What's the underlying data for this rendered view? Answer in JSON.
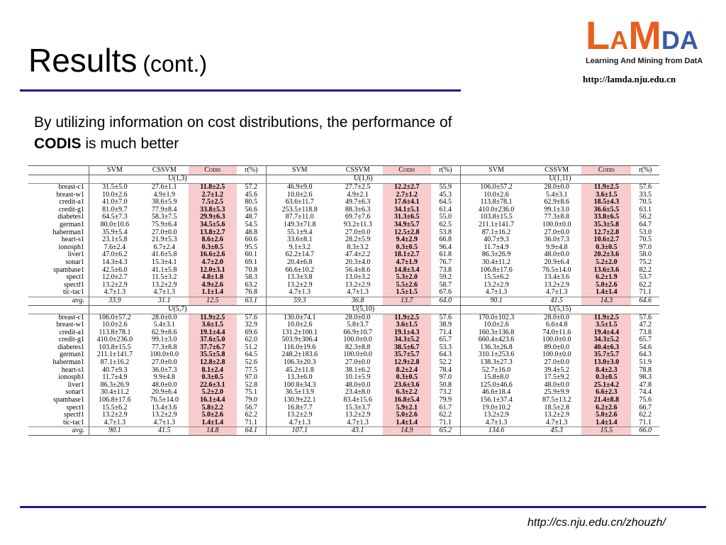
{
  "slide": {
    "title_main": "Results",
    "title_sub": "(cont.)",
    "intro_lead": "By utilizing information on cost distributions, the performance of",
    "intro_bold": "CODIS",
    "intro_tail": " is much better",
    "footer_url": "http://cs.nju.edu.cn/zhouzh/"
  },
  "logo": {
    "letters": [
      "L",
      "A",
      "M",
      "D",
      "A"
    ],
    "tagline": "Learning And Mining from DatA",
    "url": "http://lamda.nju.edu.cn"
  },
  "colors": {
    "rule": "#1a1a8c",
    "logo_orange": "#e8601c",
    "logo_blue": "#3a5aa8",
    "codis_highlight": "#f8cccc"
  },
  "table": {
    "headers": [
      "SVM",
      "CSSVM",
      "Codis",
      "r(%)",
      "SVM",
      "CSSVM",
      "Codis",
      "r(%)",
      "SVM",
      "CSSVM",
      "Codis",
      "r(%)"
    ],
    "sections": [
      {
        "labels": [
          "U(1,3)",
          "U(1,6)",
          "U(1,11)"
        ],
        "rows": [
          [
            "breast-c1",
            "31.5±5.0",
            "27.6±1.1",
            "11.8±2.5",
            "57.2",
            "46.9±9.0",
            "27.7±2.5",
            "12.2±2.7",
            "55.9",
            "106.0±57.2",
            "28.0±0.0",
            "11.9±2.5",
            "57.6"
          ],
          [
            "breast-w1",
            "10.0±2.6",
            "4.9±1.9",
            "2.7±1.2",
            "45.6",
            "10.0±2.6",
            "4.9±2.1",
            "2.7±1.2",
            "45.3",
            "10.0±2.6",
            "5.4±3.1",
            "3.6±1.5",
            "33.5"
          ],
          [
            "credit-a1",
            "41.0±7.0",
            "38.6±5.9",
            "7.5±2.5",
            "80.5",
            "63.6±11.7",
            "49.7±6.3",
            "17.6±4.1",
            "64.5",
            "113.8±78.1",
            "62.9±8.6",
            "18.5±4.3",
            "70.5"
          ],
          [
            "credit-g1",
            "81.0±9.7",
            "77.9±8.4",
            "33.8±5.3",
            "56.6",
            "253.5±118.8",
            "88.3±6.3",
            "34.1±5.1",
            "61.4",
            "410.0±236.0",
            "99.1±3.0",
            "36.6±5.5",
            "63.1"
          ],
          [
            "diabetes1",
            "64.5±7.3",
            "58.3±7.5",
            "29.9±6.3",
            "48.7",
            "87.7±11.0",
            "69.7±7.6",
            "31.3±6.5",
            "55.0",
            "103.8±15.5",
            "77.3±8.8",
            "33.8±6.5",
            "56.2"
          ],
          [
            "german1",
            "80.0±10.6",
            "75.9±6.4",
            "34.5±5.6",
            "54.5",
            "149.3±71.8",
            "93.2±11.3",
            "34.9±5.7",
            "62.5",
            "211.1±141.7",
            "100.0±0.0",
            "35.3±5.8",
            "64.7"
          ],
          [
            "haberman1",
            "35.9±5.4",
            "27.0±0.0",
            "13.8±2.7",
            "48.8",
            "55.1±9.4",
            "27.0±0.0",
            "12.5±2.8",
            "53.8",
            "87.1±16.2",
            "27.0±0.0",
            "12.7±2.8",
            "53.0"
          ],
          [
            "heart-s1",
            "23.1±5.8",
            "21.9±5.3",
            "8.6±2.6",
            "60.6",
            "33.6±8.1",
            "28.2±5.9",
            "9.4±2.9",
            "66.8",
            "40.7±9.3",
            "36.0±7.3",
            "10.6±2.7",
            "70.5"
          ],
          [
            "ionosph1",
            "7.6±2.4",
            "6.7±2.4",
            "0.3±0.5",
            "95.5",
            "9.1±3.2",
            "8.3±3.2",
            "0.3±0.5",
            "96.4",
            "11.7±4.9",
            "9.9±4.8",
            "0.3±0.5",
            "97.0"
          ],
          [
            "liver1",
            "47.0±6.2",
            "41.6±5.8",
            "16.6±2.6",
            "60.1",
            "62.2±14.7",
            "47.4±2.2",
            "18.1±2.7",
            "61.8",
            "86.3±26.9",
            "48.0±0.0",
            "20.2±3.6",
            "58.0"
          ],
          [
            "sonar1",
            "14.3±4.3",
            "15.3±4.1",
            "4.7±2.0",
            "69.1",
            "20.4±6.8",
            "20.3±4.0",
            "4.7±1.9",
            "76.7",
            "30.4±11.2",
            "20.9±6.4",
            "5.2±2.0",
            "75.2"
          ],
          [
            "spambase1",
            "42.5±6.0",
            "41.1±5.8",
            "12.0±3.1",
            "70.8",
            "66.6±10.2",
            "56.4±8.6",
            "14.8±3.4",
            "73.8",
            "106.8±17.6",
            "76.5±14.0",
            "13.6±3.6",
            "82.2"
          ],
          [
            "spect1",
            "12.0±2.7",
            "11.5±3.2",
            "4.8±1.8",
            "58.3",
            "13.3±3.8",
            "13.0±3.2",
            "5.3±2.0",
            "59.2",
            "15.5±6.2",
            "13.4±3.6",
            "6.2±1.9",
            "53.7"
          ],
          [
            "spectf1",
            "13.2±2.9",
            "13.2±2.9",
            "4.9±2.6",
            "63.2",
            "13.2±2.9",
            "13.2±2.9",
            "5.5±2.6",
            "58.7",
            "13.2±2.9",
            "13.2±2.9",
            "5.0±2.6",
            "62.2"
          ],
          [
            "tic-tac1",
            "4.7±1.3",
            "4.7±1.3",
            "1.1±1.4",
            "76.8",
            "4.7±1.3",
            "4.7±1.3",
            "1.5±1.5",
            "67.6",
            "4.7±1.3",
            "4.7±1.3",
            "1.4±1.4",
            "71.1"
          ]
        ],
        "avg": [
          "avg.",
          "33.9",
          "31.1",
          "12.5",
          "63.1",
          "59.3",
          "36.8",
          "13.7",
          "64.0",
          "90.1",
          "41.5",
          "14.3",
          "64.6"
        ]
      },
      {
        "labels": [
          "U(5,7)",
          "U(5,10)",
          "U(5,15)"
        ],
        "rows": [
          [
            "breast-c1",
            "106.0±57.2",
            "28.0±0.0",
            "11.9±2.5",
            "57.6",
            "130.0±74.1",
            "28.0±0.0",
            "11.9±2.5",
            "57.6",
            "170.0±102.3",
            "28.0±0.0",
            "11.9±2.5",
            "57.6"
          ],
          [
            "breast-w1",
            "10.0±2.6",
            "5.4±3.1",
            "3.6±1.5",
            "32.9",
            "10.0±2.6",
            "5.8±3.7",
            "3.6±1.5",
            "38.9",
            "10.0±2.6",
            "6.6±4.8",
            "3.5±1.5",
            "47.2"
          ],
          [
            "credit-a1",
            "113.8±78.1",
            "62.9±8.6",
            "19.1±4.4",
            "69.6",
            "131.2±100.1",
            "66.9±10.7",
            "19.1±4.3",
            "71.4",
            "160.3±136.8",
            "74.0±11.6",
            "19.4±4.4",
            "73.8"
          ],
          [
            "credit-g1",
            "410.0±236.0",
            "99.1±3.0",
            "37.6±5.0",
            "62.0",
            "503.9±306.4",
            "100.0±0.0",
            "34.3±5.2",
            "65.7",
            "660.4±423.6",
            "100.0±0.0",
            "34.3±5.2",
            "65.7"
          ],
          [
            "diabetes1",
            "103.8±15.5",
            "77.3±8.8",
            "37.7±6.7",
            "51.2",
            "116.0±19.6",
            "82.3±8.8",
            "38.5±6.7",
            "53.3",
            "136.3±26.8",
            "89.0±0.0",
            "40.4±6.3",
            "54.6"
          ],
          [
            "german1",
            "211.1±141.7",
            "100.0±0.0",
            "35.5±5.8",
            "64.5",
            "248.2±183.6",
            "100.0±0.0",
            "35.7±5.7",
            "64.3",
            "310.1±253.6",
            "100.0±0.0",
            "35.7±5.7",
            "64.3"
          ],
          [
            "haberman1",
            "87.1±16.2",
            "27.0±0.0",
            "12.8±2.8",
            "52.6",
            "106.3±20.3",
            "27.0±0.0",
            "12.9±2.8",
            "52.2",
            "138.3±27.3",
            "27.0±0.0",
            "13.0±3.0",
            "51.9"
          ],
          [
            "heart-s1",
            "40.7±9.3",
            "36.0±7.3",
            "8.1±2.4",
            "77.5",
            "45.2±11.8",
            "38.1±6.2",
            "8.2±2.4",
            "78.4",
            "52.7±16.0",
            "39.4±5.2",
            "8.4±2.3",
            "78.8"
          ],
          [
            "ionosph1",
            "11.7±4.9",
            "9.9±4.8",
            "0.3±0.5",
            "97.0",
            "13.3±6.0",
            "10.1±5.9",
            "0.3±0.5",
            "97.0",
            "15.8±8.0",
            "17.5±9.2",
            "0.3±0.5",
            "98.3"
          ],
          [
            "liver1",
            "86.3±26.9",
            "48.0±0.0",
            "22.6±3.1",
            "52.8",
            "100.8±34.3",
            "48.0±0.0",
            "23.6±3.6",
            "50.8",
            "125.0±46.6",
            "48.0±0.0",
            "25.1±4.2",
            "47.8"
          ],
          [
            "sonar1",
            "30.4±11.2",
            "20.9±6.4",
            "5.2±2.0",
            "75.1",
            "36.5±13.9",
            "23.4±8.0",
            "6.3±2.2",
            "73.2",
            "46.6±18.4",
            "25.9±9.9",
            "6.6±2.3",
            "74.4"
          ],
          [
            "spambase1",
            "106.8±17.6",
            "76.5±14.0",
            "16.1±4.4",
            "79.0",
            "130.9±22.1",
            "83.4±15.6",
            "16.8±5.4",
            "79.9",
            "156.1±37.4",
            "87.5±13.2",
            "21.4±8.8",
            "75.6"
          ],
          [
            "spect1",
            "15.5±6.2",
            "13.4±3.6",
            "5.8±2.2",
            "56.7",
            "16.8±7.7",
            "15.3±3.7",
            "5.9±2.1",
            "61.7",
            "19.0±10.2",
            "18.5±2.8",
            "6.2±2.6",
            "66.7"
          ],
          [
            "spectf1",
            "13.2±2.9",
            "13.2±2.9",
            "5.0±2.6",
            "62.2",
            "13.2±2.9",
            "13.2±2.9",
            "5.0±2.6",
            "62.2",
            "13.2±2.9",
            "13.2±2.9",
            "5.0±2.6",
            "62.2"
          ],
          [
            "tic-tac1",
            "4.7±1.3",
            "4.7±1.3",
            "1.4±1.4",
            "71.1",
            "4.7±1.3",
            "4.7±1.3",
            "1.4±1.4",
            "71.1",
            "4.7±1.3",
            "4.7±1.3",
            "1.4±1.4",
            "71.1"
          ]
        ],
        "avg": [
          "avg.",
          "90.1",
          "41.5",
          "14.8",
          "64.1",
          "107.1",
          "43.1",
          "14.9",
          "65.2",
          "134.6",
          "45.3",
          "15.5",
          "66.0"
        ]
      }
    ]
  }
}
